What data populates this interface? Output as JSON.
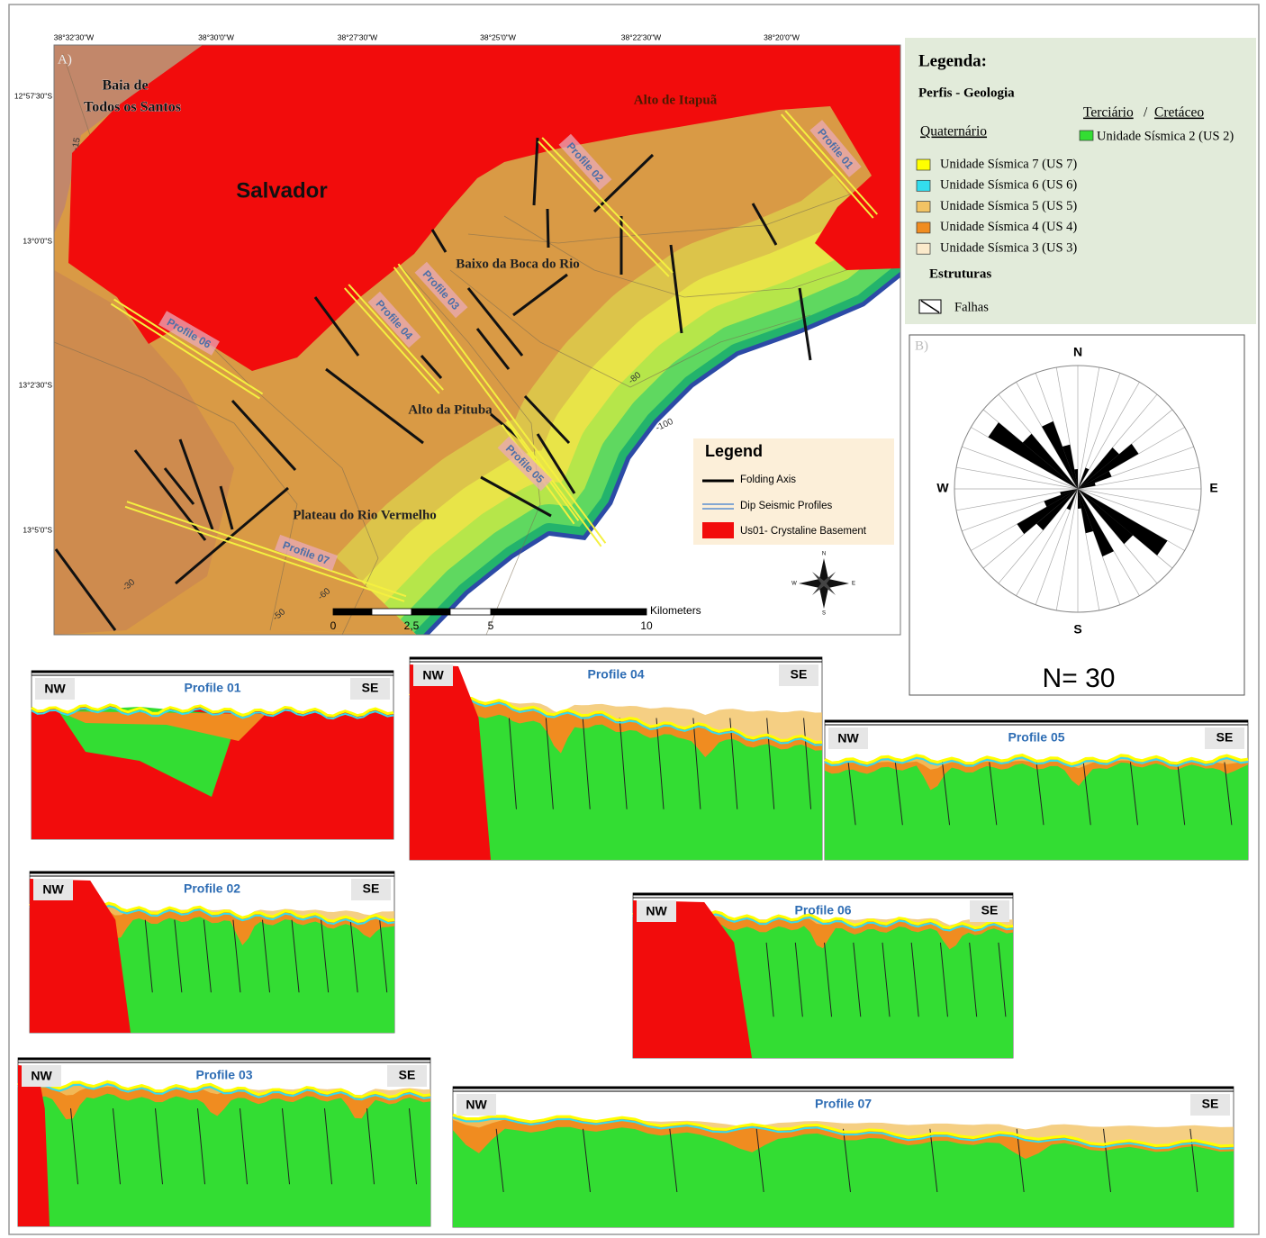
{
  "map": {
    "panel_label": "A)",
    "longitudes": [
      "38°32'30\"W",
      "38°30'0\"W",
      "38°27'30\"W",
      "38°25'0\"W",
      "38°22'30\"W",
      "38°20'0\"W"
    ],
    "latitudes": [
      "12°57'30\"S",
      "13°0'0\"S",
      "13°2'30\"S",
      "13°5'0\"S"
    ],
    "places": [
      "Baia de",
      "Todos os Santos",
      "Salvador",
      "Alto de Itapuã",
      "Baixo da Boca do Rio",
      "Alto da Pituba",
      "Plateau do Rio Vermelho"
    ],
    "profiles": [
      "Profile 01",
      "Profile 02",
      "Profile 03",
      "Profile 04",
      "Profile 05",
      "Profile 06",
      "Profile 07"
    ],
    "isobaths": [
      "-15",
      "-30",
      "-50",
      "-60",
      "-80",
      "-100"
    ],
    "scale_labels": [
      "0",
      "2,5",
      "5",
      "10"
    ],
    "scale_unit": "Kilometers",
    "legend_title": "Legend",
    "legend_items": [
      "Folding Axis",
      "Dip Seismic Profiles",
      "Us01- Crystaline Basement"
    ],
    "compass": [
      "N",
      "E",
      "S",
      "W"
    ]
  },
  "legend": {
    "title": "Legenda:",
    "subtitle": "Perfis - Geologia",
    "tertiary": "Terciário",
    "separator": "/",
    "cretaceous": "Cretáceo",
    "quaternary": "Quaternário",
    "us2": "Unidade Sísmica 2 (US 2)",
    "units": [
      "Unidade Sísmica 7 (US 7)",
      "Unidade Sísmica 6 (US 6)",
      "Unidade Sísmica 5 (US 5)",
      "Unidade Sísmica 4 (US 4)",
      "Unidade Sísmica 3 (US 3)"
    ],
    "structures": "Estruturas",
    "faults": "Falhas"
  },
  "rose": {
    "panel_label": "B)",
    "directions": [
      "N",
      "E",
      "S",
      "W"
    ],
    "count": "N= 30"
  },
  "sections": [
    {
      "title": "Profile 01",
      "left": "NW",
      "right": "SE"
    },
    {
      "title": "Profile 02",
      "left": "NW",
      "right": "SE"
    },
    {
      "title": "Profile 03",
      "left": "NW",
      "right": "SE"
    },
    {
      "title": "Profile 04",
      "left": "NW",
      "right": "SE"
    },
    {
      "title": "Profile 05",
      "left": "NW",
      "right": "SE"
    },
    {
      "title": "Profile 06",
      "left": "NW",
      "right": "SE"
    },
    {
      "title": "Profile 07",
      "left": "NW",
      "right": "SE"
    }
  ]
}
